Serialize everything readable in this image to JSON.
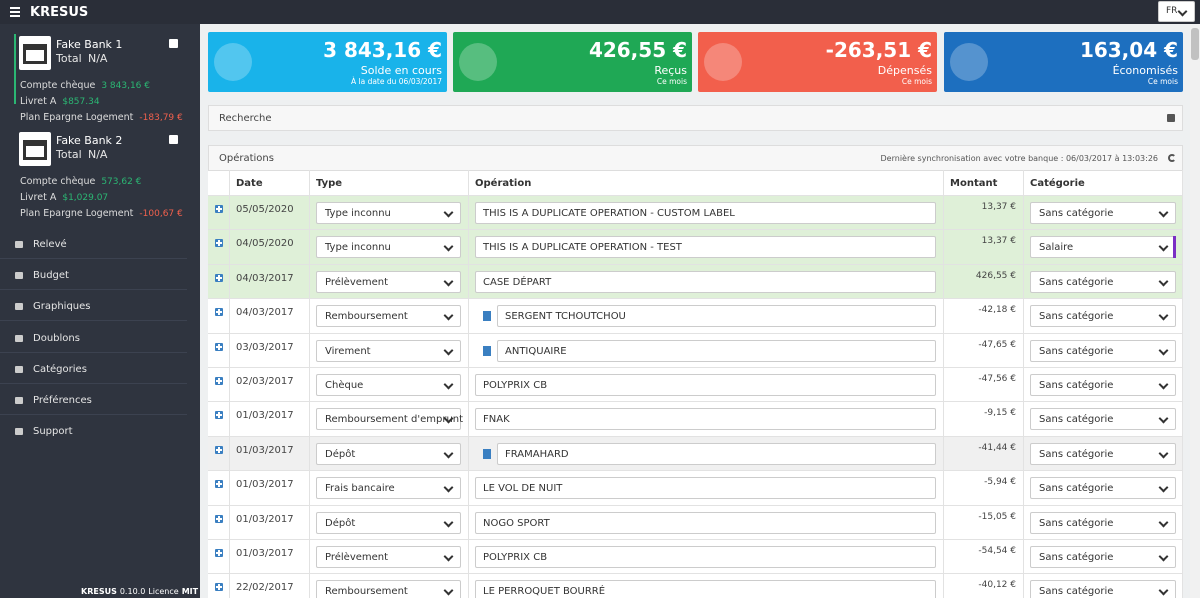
{
  "header": {
    "brand": "KRESUS",
    "language": "FR"
  },
  "sidebar": {
    "banks": [
      {
        "name": "Fake Bank 1",
        "total_label": "Total",
        "total": "N/A",
        "accounts": [
          {
            "name": "Compte chèque",
            "balance": "3 843,16 €"
          },
          {
            "name": "Livret A",
            "balance": "$857.34"
          },
          {
            "name": "Plan Epargne Logement",
            "balance": "-183,79 €"
          }
        ]
      },
      {
        "name": "Fake Bank 2",
        "total_label": "Total",
        "total": "N/A",
        "accounts": [
          {
            "name": "Compte chèque",
            "balance": "573,62 €"
          },
          {
            "name": "Livret A",
            "balance": "$1,029.07"
          },
          {
            "name": "Plan Epargne Logement",
            "balance": "-100,67 €"
          }
        ]
      }
    ],
    "menu": [
      "Relevé",
      "Budget",
      "Graphiques",
      "Doublons",
      "Catégories",
      "Préférences",
      "Support"
    ],
    "footer": {
      "brand": "KRESUS",
      "version": "0.10.0",
      "license_label": "Licence",
      "license": "MIT"
    }
  },
  "summary": [
    {
      "amount": "3 843,16 €",
      "label": "Solde en cours",
      "note": "À la date du 06/03/2017"
    },
    {
      "amount": "426,55 €",
      "label": "Reçus",
      "note": "Ce mois"
    },
    {
      "amount": "-263,51 €",
      "label": "Dépensés",
      "note": "Ce mois"
    },
    {
      "amount": "163,04 €",
      "label": "Économisés",
      "note": "Ce mois"
    }
  ],
  "search": {
    "title": "Recherche"
  },
  "operations": {
    "title": "Opérations",
    "sync": "Dernière synchronisation avec votre banque : 06/03/2017 à 13:03:26",
    "columns": [
      "Date",
      "Type",
      "Opération",
      "Montant",
      "Catégorie"
    ],
    "rows": [
      {
        "date": "05/05/2020",
        "type": "Type inconnu",
        "label": "THIS IS A DUPLICATE OPERATION - CUSTOM LABEL",
        "amount": "13,37 €",
        "category": "Sans catégorie"
      },
      {
        "date": "04/05/2020",
        "type": "Type inconnu",
        "label": "THIS IS A DUPLICATE OPERATION - TEST",
        "amount": "13,37 €",
        "category": "Salaire"
      },
      {
        "date": "04/03/2017",
        "type": "Prélèvement",
        "label": "CASE DÉPART",
        "amount": "426,55 €",
        "category": "Sans catégorie"
      },
      {
        "date": "04/03/2017",
        "type": "Remboursement",
        "label": "SERGENT TCHOUTCHOU",
        "amount": "-42,18 €",
        "category": "Sans catégorie"
      },
      {
        "date": "03/03/2017",
        "type": "Virement",
        "label": "ANTIQUAIRE",
        "amount": "-47,65 €",
        "category": "Sans catégorie"
      },
      {
        "date": "02/03/2017",
        "type": "Chèque",
        "label": "POLYPRIX CB",
        "amount": "-47,56 €",
        "category": "Sans catégorie"
      },
      {
        "date": "01/03/2017",
        "type": "Remboursement d'emprunt",
        "label": "FNAK",
        "amount": "-9,15 €",
        "category": "Sans catégorie"
      },
      {
        "date": "01/03/2017",
        "type": "Dépôt",
        "label": "FRAMAHARD",
        "amount": "-41,44 €",
        "category": "Sans catégorie"
      },
      {
        "date": "01/03/2017",
        "type": "Frais bancaire",
        "label": "LE VOL DE NUIT",
        "amount": "-5,94 €",
        "category": "Sans catégorie"
      },
      {
        "date": "01/03/2017",
        "type": "Dépôt",
        "label": "NOGO SPORT",
        "amount": "-15,05 €",
        "category": "Sans catégorie"
      },
      {
        "date": "01/03/2017",
        "type": "Prélèvement",
        "label": "POLYPRIX CB",
        "amount": "-54,54 €",
        "category": "Sans catégorie"
      },
      {
        "date": "22/02/2017",
        "type": "Remboursement",
        "label": "LE PERROQUET BOURRÉ",
        "amount": "-40,12 €",
        "category": "Sans catégorie"
      }
    ]
  }
}
